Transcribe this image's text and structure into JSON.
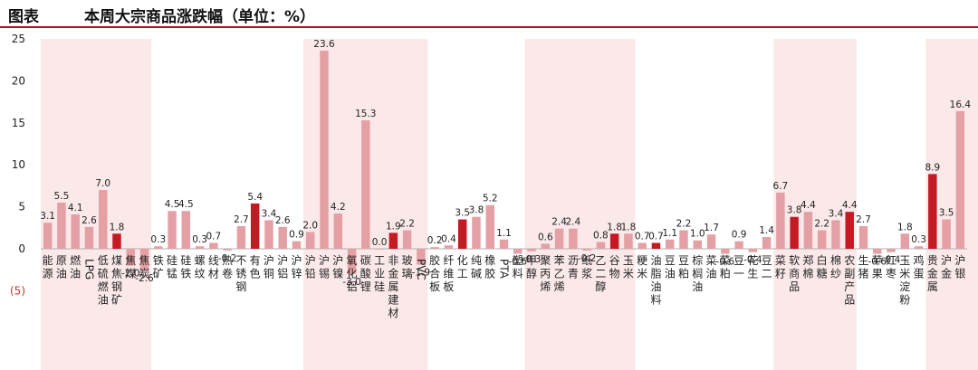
{
  "header": {
    "label": "图表",
    "title": "本周大宗商品涨跌幅（单位：%）"
  },
  "colors": {
    "sector_bar": "#c41a24",
    "item_bar": "#e4a0a4",
    "band": "#fbe9ea",
    "rule": "#a01822"
  },
  "chart_data": {
    "type": "bar",
    "title": "本周大宗商品涨跌幅（单位：%）",
    "ylim": [
      -5,
      25
    ],
    "yticks": [
      {
        "value": 25,
        "label": "25"
      },
      {
        "value": 20,
        "label": "20"
      },
      {
        "value": 15,
        "label": "15"
      },
      {
        "value": 10,
        "label": "10"
      },
      {
        "value": 5,
        "label": "5"
      },
      {
        "value": 0,
        "label": "0"
      },
      {
        "value": -5,
        "label": "(5)"
      }
    ],
    "grid": false,
    "legend": "none",
    "bands": [
      [
        0,
        7
      ],
      [
        19,
        27
      ],
      [
        35,
        42
      ],
      [
        53,
        58
      ],
      [
        64,
        68
      ]
    ],
    "categories": [
      "能源",
      "原油",
      "燃油",
      "LPG",
      "低硫燃油",
      "煤焦钢矿",
      "焦煤",
      "焦炭",
      "铁矿",
      "硅锰",
      "硅铁",
      "螺纹",
      "线材",
      "热卷",
      "不锈钢",
      "有色",
      "沪铜",
      "沪铝",
      "沪锌",
      "沪铅",
      "沪锡",
      "沪镍",
      "氧化铝",
      "碳酸锂",
      "工业硅",
      "非金属建材",
      "玻璃",
      "PVC",
      "胶合板",
      "纤维板",
      "化工",
      "纯碱",
      "橡胶",
      "PTA",
      "塑料",
      "甲醇",
      "聚丙烯",
      "苯乙烯",
      "沥青",
      "纸浆",
      "乙二醇",
      "谷物",
      "玉米",
      "粳米",
      "油脂油料",
      "豆油",
      "豆粕",
      "棕榈油",
      "菜油",
      "菜粕",
      "豆一",
      "花生",
      "豆二",
      "菜籽",
      "软商品",
      "郑棉",
      "白糖",
      "棉纱",
      "农副产品",
      "生猪",
      "苹果",
      "红枣",
      "玉米淀粉",
      "鸡蛋",
      "贵金属",
      "沪金",
      "沪银"
    ],
    "series": [
      {
        "values": [
          3.1,
          5.5,
          4.1,
          2.6,
          7.0,
          1.8,
          -2.0,
          -2.6,
          0.3,
          4.5,
          4.5,
          0.3,
          0.7,
          -0.2,
          2.7,
          5.4,
          3.4,
          2.6,
          0.9,
          2.0,
          23.6,
          4.2,
          -3.0,
          15.3,
          0.0,
          1.9,
          2.2,
          -1.9,
          0.2,
          0.4,
          3.5,
          3.8,
          5.2,
          1.1,
          -0.6,
          -0.3,
          0.6,
          2.4,
          2.4,
          -0.2,
          0.8,
          1.8,
          1.8,
          0.7,
          0.7,
          1.1,
          2.2,
          1.0,
          1.7,
          -0.6,
          0.9,
          -0.4,
          1.4,
          6.7,
          3.8,
          4.4,
          2.2,
          3.4,
          4.4,
          2.7,
          -0.6,
          -0.4,
          1.8,
          0.3,
          8.9,
          3.5,
          16.4
        ],
        "data_labels": [
          "3.1",
          "5.5",
          "4.1",
          "2.6",
          "7.0",
          "1.8",
          "-2.0",
          "-2.6",
          "0.3",
          "4.5",
          "4.5",
          "0.3",
          "0.7",
          "-0.2",
          "2.7",
          "5.4",
          "3.4",
          "2.6",
          "0.9",
          "2.0",
          "23.6",
          "4.2",
          "-3.0",
          "15.3",
          "0.0",
          "1.9",
          "2.2",
          "-1.9",
          "0.2",
          "0.4",
          "3.5",
          "3.8",
          "5.2",
          "1.1",
          "-0.6",
          "-0.3",
          "0.6",
          "2.4",
          "2.4",
          "-0.2",
          "0.8",
          "1.8",
          "1.8",
          "0.7",
          "0.7",
          "1.1",
          "2.2",
          "1.0",
          "1.7",
          "-0.6",
          "0.9",
          "-0.4",
          "1.4",
          "6.7",
          "3.8",
          "4.4",
          "2.2",
          "3.4",
          "4.4",
          "2.7",
          "-0.6",
          "-0.4",
          "1.8",
          "0.3",
          "8.9",
          "3.5",
          "16.4"
        ]
      }
    ],
    "sector_categories": [
      "煤焦钢矿",
      "有色",
      "非金属建材",
      "化工",
      "谷物",
      "油脂油料",
      "软商品",
      "农副产品",
      "贵金属"
    ]
  }
}
